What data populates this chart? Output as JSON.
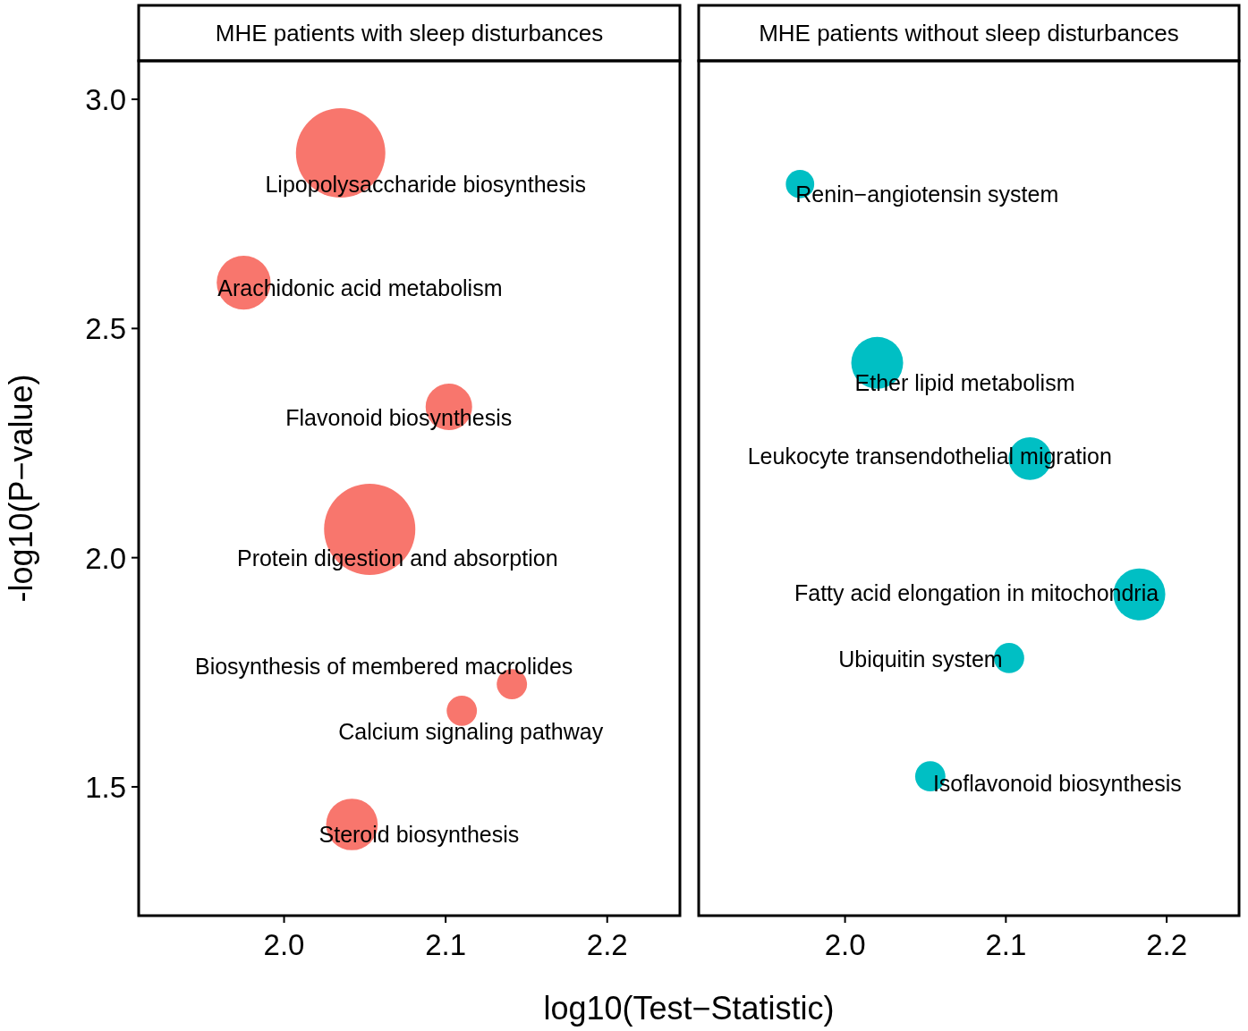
{
  "chart_data": [
    {
      "type": "bubble",
      "title": "MHE patients with sleep disturbances",
      "xlabel": "log10(Test−Statistic)",
      "ylabel": "-log10(P−value)",
      "xlim": [
        1.91,
        2.245
      ],
      "xticks": [
        {
          "value": 2.0,
          "label": "2.0"
        },
        {
          "value": 2.1,
          "label": "2.1"
        },
        {
          "value": 2.2,
          "label": "2.2"
        }
      ],
      "ylim": [
        1.219,
        3.084
      ],
      "yticks": [
        {
          "value": 1.5,
          "label": "1.5"
        },
        {
          "value": 2.0,
          "label": "2.0"
        },
        {
          "value": 2.5,
          "label": "2.5"
        },
        {
          "value": 3.0,
          "label": "3.0"
        }
      ],
      "grid": false,
      "series": [
        {
          "color": "#f8766d",
          "x": [
            2.035,
            1.975,
            2.102,
            2.053,
            2.141,
            2.11,
            2.042
          ],
          "values": [
            2.883,
            2.6,
            2.329,
            2.062,
            1.724,
            1.666,
            1.418
          ],
          "sizes": [
            0.96,
            0.35,
            0.26,
            1,
            0.11,
            0.11,
            0.32
          ],
          "value_labels": [
            "Lipopolysaccharide biosynthesis",
            "Arachidonic acid metabolism",
            "Flavonoid biosynthesis",
            "Protein digestion and absorption",
            "Biosynthesis of membered macrolides",
            "Calcium signaling pathway",
            "Steroid biosynthesis"
          ]
        }
      ]
    },
    {
      "type": "bubble",
      "title": "MHE patients without sleep disturbances",
      "tick_labels": "x",
      "xlim": [
        1.909,
        2.245
      ],
      "xticks": [
        {
          "value": 2.0,
          "label": "2.0"
        },
        {
          "value": 2.1,
          "label": "2.1"
        },
        {
          "value": 2.2,
          "label": "2.2"
        }
      ],
      "ylim": [
        1.219,
        3.084
      ],
      "grid": false,
      "series": [
        {
          "color": "#00bfc4",
          "x": [
            1.972,
            2.02,
            2.115,
            2.183,
            2.102,
            2.053
          ],
          "values": [
            2.815,
            2.425,
            2.216,
            1.92,
            1.781,
            1.523
          ],
          "sizes": [
            0.3,
            1,
            0.68,
            1,
            0.34,
            0.34
          ],
          "value_labels": [
            "Renin−angiotensin system",
            "Ether lipid metabolism",
            "Leukocyte transendothelial migration",
            "Fatty acid elongation in mitochondria",
            "Ubiquitin system",
            "Isoflavonoid biosynthesis"
          ]
        }
      ]
    }
  ]
}
